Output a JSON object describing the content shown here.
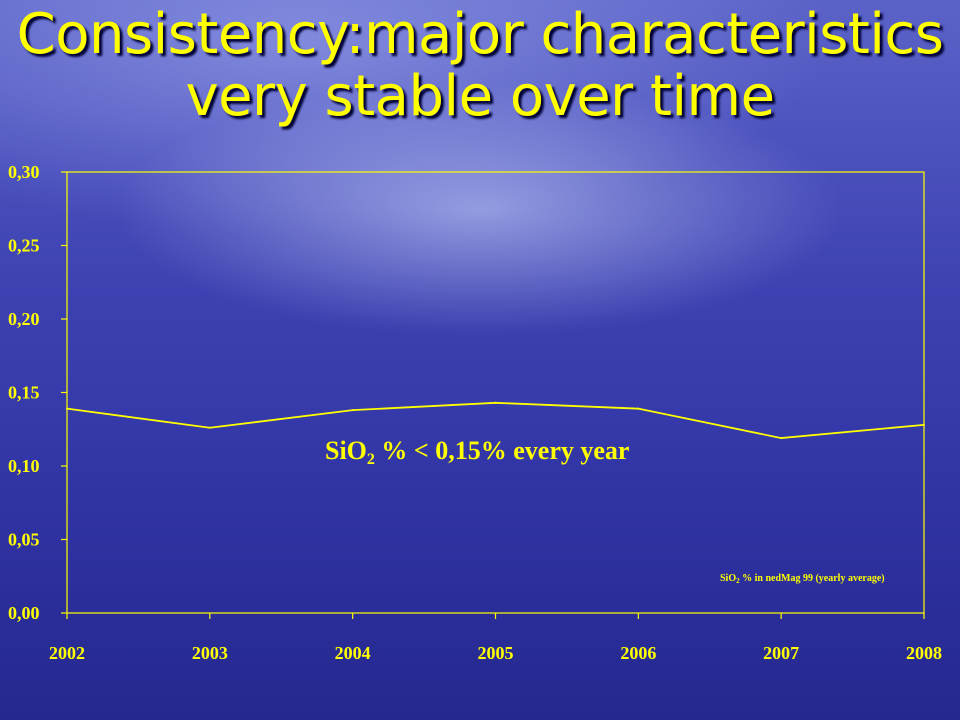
{
  "slide": {
    "title_line1": "Consistency:major characteristics",
    "title_line2": "very stable over time"
  },
  "annotation": {
    "main_prefix": "SiO",
    "main_subscript": "2",
    "main_suffix": " % < 0,15% every year"
  },
  "legend_note": {
    "prefix": "SiO",
    "subscript": "2",
    "suffix": " % in nedMag 99 (yearly average)"
  },
  "colors": {
    "text": "#ffff00",
    "line": "#ffff00",
    "axis": "#ffff00"
  },
  "chart_data": {
    "type": "line",
    "categories": [
      "2002",
      "2003",
      "2004",
      "2005",
      "2006",
      "2007",
      "2008"
    ],
    "series": [
      {
        "name": "SiO2 % in nedMag 99 (yearly average)",
        "values": [
          0.139,
          0.126,
          0.138,
          0.143,
          0.139,
          0.119,
          0.128
        ]
      }
    ],
    "ylim": [
      0.0,
      0.3
    ],
    "yticks": [
      "0,00",
      "0,05",
      "0,10",
      "0,15",
      "0,20",
      "0,25",
      "0,30"
    ],
    "grid": false,
    "title": "",
    "xlabel": "",
    "ylabel": ""
  }
}
